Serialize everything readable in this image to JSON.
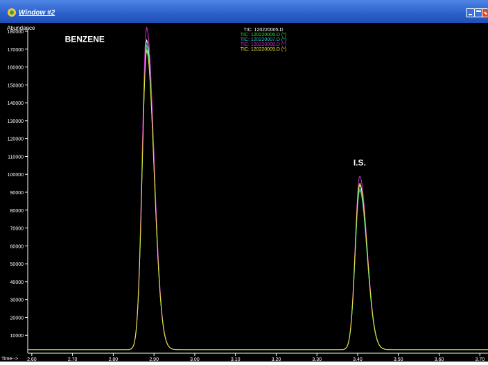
{
  "window": {
    "title": "Window #2",
    "buttons": [
      "minimize",
      "maximize",
      "close"
    ],
    "icon": "app-icon"
  },
  "chart_data": {
    "type": "line",
    "ylabel": "Abundance",
    "xlabel": "Time-->",
    "xlim": [
      2.59,
      3.72
    ],
    "ylim": [
      0,
      180000
    ],
    "yticks": [
      "10000",
      "20000",
      "30000",
      "40000",
      "50000",
      "60000",
      "70000",
      "80000",
      "90000",
      "100000",
      "110000",
      "120000",
      "130000",
      "140000",
      "150000",
      "160000",
      "170000",
      "180000"
    ],
    "xticks": [
      "2.60",
      "2.70",
      "2.80",
      "2.90",
      "3.00",
      "3.10",
      "3.20",
      "3.30",
      "3.40",
      "3.50",
      "3.60",
      "3.70"
    ],
    "legend": [
      {
        "name": "TIC: 120220005.D",
        "color": "#ffffff"
      },
      {
        "name": "TIC: 120220006.D (*)",
        "color": "#33dd33"
      },
      {
        "name": "TIC: 120220007.D (*)",
        "color": "#22cccc"
      },
      {
        "name": "TIC: 120220008.D (*)",
        "color": "#cc33cc"
      },
      {
        "name": "TIC: 120220009.D (*)",
        "color": "#e6e62e"
      }
    ],
    "annotations": [
      {
        "text": "BENZENE",
        "x": 2.73,
        "y": 174000
      },
      {
        "text": "I.S.",
        "x": 3.405,
        "y": 105000
      }
    ],
    "series": [
      {
        "color": "#ffffff",
        "baseline": 2000,
        "peaks": [
          {
            "x": 2.882,
            "y": 173000
          },
          {
            "x": 3.405,
            "y": 92000
          }
        ]
      },
      {
        "color": "#33dd33",
        "baseline": 2000,
        "peaks": [
          {
            "x": 2.882,
            "y": 168000
          },
          {
            "x": 3.405,
            "y": 89000
          }
        ]
      },
      {
        "color": "#22cccc",
        "baseline": 2000,
        "peaks": [
          {
            "x": 2.882,
            "y": 170000
          },
          {
            "x": 3.405,
            "y": 90000
          }
        ]
      },
      {
        "color": "#cc33cc",
        "baseline": 2000,
        "peaks": [
          {
            "x": 2.882,
            "y": 180000
          },
          {
            "x": 3.405,
            "y": 97000
          }
        ]
      },
      {
        "color": "#e6e62e",
        "baseline": 2000,
        "peaks": [
          {
            "x": 2.882,
            "y": 167000
          },
          {
            "x": 3.405,
            "y": 93000
          }
        ]
      }
    ]
  }
}
